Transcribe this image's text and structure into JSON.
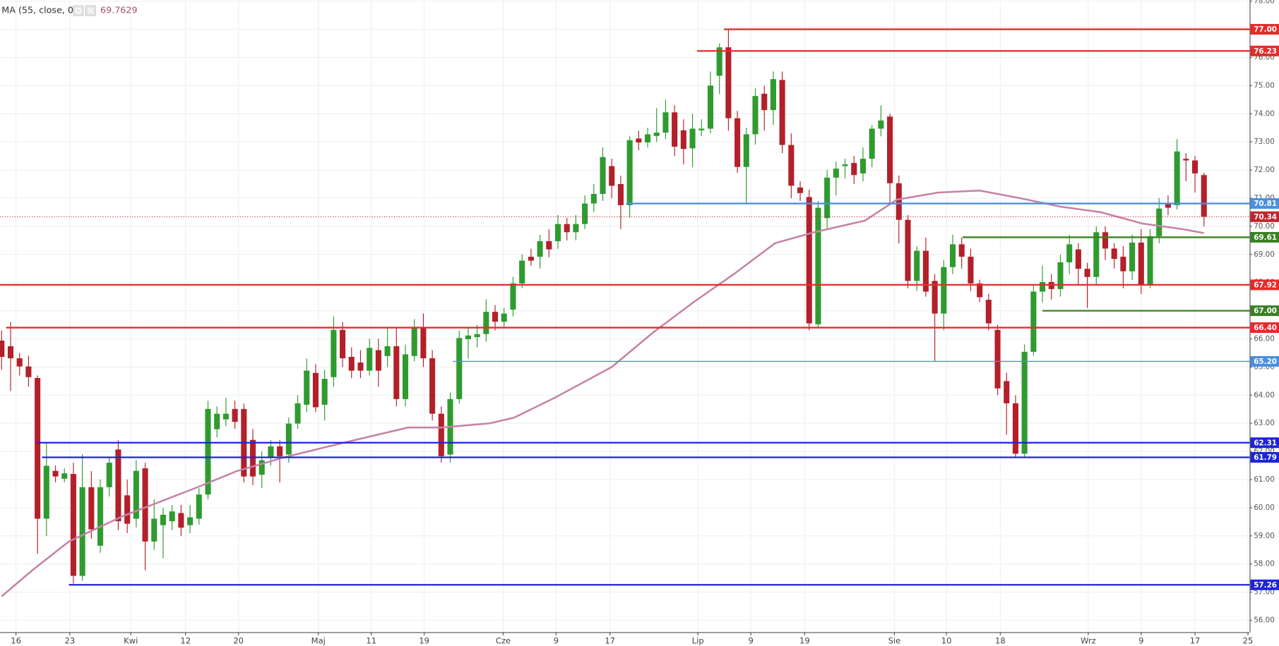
{
  "chart_data": {
    "type": "candlestick",
    "legend": {
      "name": "MA (55, close, 0)",
      "value": 69.7629
    },
    "up_color": "#2f9b2f",
    "down_color": "#b3202a",
    "xlim": [
      -0.18,
      139.09
    ],
    "xticks": [
      {
        "value": 1.6,
        "label": "16"
      },
      {
        "value": 7.6,
        "label": "23"
      },
      {
        "value": 14.4,
        "label": "Kwi"
      },
      {
        "value": 20.5,
        "label": "12"
      },
      {
        "value": 26.4,
        "label": "20"
      },
      {
        "value": 35.3,
        "label": "Maj"
      },
      {
        "value": 41.2,
        "label": "11"
      },
      {
        "value": 47.1,
        "label": "19"
      },
      {
        "value": 55.9,
        "label": "Cze"
      },
      {
        "value": 61.8,
        "label": "9"
      },
      {
        "value": 67.8,
        "label": "17"
      },
      {
        "value": 77.6,
        "label": "Lip"
      },
      {
        "value": 83.5,
        "label": "9"
      },
      {
        "value": 89.5,
        "label": "19"
      },
      {
        "value": 99.5,
        "label": "Sie"
      },
      {
        "value": 105.3,
        "label": "10"
      },
      {
        "value": 111.3,
        "label": "18"
      },
      {
        "value": 121.1,
        "label": "Wrz"
      },
      {
        "value": 127,
        "label": "9"
      },
      {
        "value": 133,
        "label": "17"
      },
      {
        "value": 138.9,
        "label": "25"
      }
    ],
    "ylim": [
      55.58,
      78.04
    ],
    "yticks": [
      {
        "value": 56,
        "label": "56.00"
      },
      {
        "value": 57,
        "label": "57.00"
      },
      {
        "value": 58,
        "label": "58.00"
      },
      {
        "value": 59,
        "label": "59.00"
      },
      {
        "value": 60,
        "label": "60.00"
      },
      {
        "value": 61,
        "label": "61.00"
      },
      {
        "value": 62,
        "label": "62.00"
      },
      {
        "value": 63,
        "label": "63.00"
      },
      {
        "value": 64,
        "label": "64.00"
      },
      {
        "value": 65,
        "label": "65.00"
      },
      {
        "value": 66,
        "label": "66.00"
      },
      {
        "value": 67,
        "label": "67.00"
      },
      {
        "value": 68,
        "label": "68.00"
      },
      {
        "value": 69,
        "label": "69.00"
      },
      {
        "value": 70,
        "label": "70.00"
      },
      {
        "value": 71,
        "label": "71.00"
      },
      {
        "value": 72,
        "label": "72.00"
      },
      {
        "value": 73,
        "label": "73.00"
      },
      {
        "value": 74,
        "label": "74.00"
      },
      {
        "value": 75,
        "label": "75.00"
      },
      {
        "value": 76,
        "label": "76.00"
      },
      {
        "value": 77,
        "label": "77.00"
      },
      {
        "value": 78,
        "label": "78.00"
      }
    ],
    "grid": true,
    "ohlc": [
      [
        65.94,
        66.3,
        64.9,
        65.36
      ],
      [
        65.74,
        66.6,
        64.15,
        65.31
      ],
      [
        65.31,
        65.5,
        64.7,
        65.02
      ],
      [
        65.02,
        65.4,
        64.3,
        64.64
      ],
      [
        64.61,
        64.7,
        58.36,
        59.61
      ],
      [
        59.61,
        62.3,
        59.0,
        61.49
      ],
      [
        61.31,
        61.5,
        60.9,
        61.11
      ],
      [
        61.03,
        61.4,
        60.9,
        61.22
      ],
      [
        61.2,
        61.6,
        57.3,
        57.58
      ],
      [
        57.58,
        61.9,
        57.4,
        60.73
      ],
      [
        60.73,
        61.3,
        58.9,
        59.23
      ],
      [
        58.65,
        61.0,
        58.4,
        60.73
      ],
      [
        60.73,
        61.8,
        60.4,
        61.6
      ],
      [
        62.07,
        62.4,
        59.2,
        59.52
      ],
      [
        60.44,
        61.0,
        59.1,
        59.43
      ],
      [
        59.61,
        61.7,
        59.3,
        61.31
      ],
      [
        61.4,
        61.6,
        57.78,
        58.8
      ],
      [
        58.8,
        60.3,
        58.5,
        59.61
      ],
      [
        59.38,
        60.0,
        58.2,
        59.75
      ],
      [
        59.52,
        60.1,
        59.2,
        59.87
      ],
      [
        59.81,
        60.1,
        59.0,
        59.29
      ],
      [
        59.38,
        60.1,
        59.1,
        59.66
      ],
      [
        59.61,
        60.7,
        59.4,
        60.47
      ],
      [
        60.47,
        63.8,
        60.3,
        63.51
      ],
      [
        62.79,
        63.6,
        62.5,
        63.34
      ],
      [
        63.14,
        63.9,
        62.9,
        63.34
      ],
      [
        63.51,
        63.8,
        62.8,
        63.05
      ],
      [
        63.51,
        63.7,
        60.9,
        61.11
      ],
      [
        62.41,
        62.8,
        60.8,
        61.11
      ],
      [
        61.17,
        62.0,
        60.7,
        61.69
      ],
      [
        61.78,
        62.4,
        61.5,
        62.18
      ],
      [
        62.18,
        62.4,
        60.9,
        61.83
      ],
      [
        61.89,
        63.2,
        61.6,
        62.99
      ],
      [
        62.99,
        64.0,
        62.8,
        63.71
      ],
      [
        63.66,
        65.3,
        63.4,
        64.87
      ],
      [
        64.79,
        65.1,
        63.4,
        63.57
      ],
      [
        63.66,
        64.9,
        63.1,
        64.58
      ],
      [
        64.64,
        66.8,
        64.3,
        66.32
      ],
      [
        66.32,
        66.6,
        65.0,
        65.31
      ],
      [
        65.36,
        65.7,
        64.6,
        64.87
      ],
      [
        65.16,
        65.6,
        64.6,
        64.87
      ],
      [
        64.87,
        66.0,
        64.7,
        65.68
      ],
      [
        65.6,
        66.0,
        64.3,
        64.87
      ],
      [
        65.39,
        66.4,
        65.0,
        65.74
      ],
      [
        65.74,
        66.4,
        63.6,
        63.86
      ],
      [
        63.86,
        65.8,
        63.6,
        65.45
      ],
      [
        65.39,
        66.7,
        65.2,
        66.38
      ],
      [
        66.38,
        66.9,
        65.0,
        65.31
      ],
      [
        65.31,
        65.6,
        63.1,
        63.34
      ],
      [
        63.34,
        63.6,
        61.6,
        61.83
      ],
      [
        61.89,
        64.1,
        61.6,
        63.86
      ],
      [
        63.86,
        66.3,
        63.7,
        66.03
      ],
      [
        65.99,
        66.4,
        65.3,
        66.12
      ],
      [
        66.06,
        66.5,
        65.7,
        66.17
      ],
      [
        66.17,
        67.4,
        65.9,
        66.96
      ],
      [
        66.96,
        67.2,
        66.3,
        66.61
      ],
      [
        66.61,
        67.1,
        66.4,
        66.9
      ],
      [
        67.04,
        68.2,
        66.8,
        67.97
      ],
      [
        67.97,
        69.0,
        67.8,
        68.78
      ],
      [
        68.92,
        69.2,
        68.6,
        68.78
      ],
      [
        68.92,
        69.7,
        68.5,
        69.47
      ],
      [
        69.47,
        69.9,
        68.9,
        69.18
      ],
      [
        69.47,
        70.4,
        69.2,
        70.08
      ],
      [
        70.08,
        70.3,
        69.5,
        69.79
      ],
      [
        69.79,
        70.4,
        69.5,
        70.08
      ],
      [
        70.08,
        71.1,
        69.9,
        70.81
      ],
      [
        70.81,
        71.5,
        70.5,
        71.15
      ],
      [
        71.15,
        72.8,
        70.9,
        72.46
      ],
      [
        72.14,
        72.4,
        71.0,
        71.44
      ],
      [
        71.5,
        71.8,
        69.9,
        70.75
      ],
      [
        70.75,
        73.2,
        70.3,
        73.06
      ],
      [
        73.12,
        73.4,
        72.7,
        72.98
      ],
      [
        72.98,
        73.5,
        72.8,
        73.27
      ],
      [
        73.21,
        74.2,
        73.0,
        73.33
      ],
      [
        73.33,
        74.5,
        73.1,
        74.05
      ],
      [
        74.05,
        74.3,
        72.5,
        72.83
      ],
      [
        73.41,
        73.8,
        72.2,
        72.75
      ],
      [
        72.77,
        74.0,
        72.1,
        73.47
      ],
      [
        73.41,
        73.8,
        73.2,
        73.47
      ],
      [
        73.47,
        75.5,
        73.3,
        75.0
      ],
      [
        75.35,
        76.5,
        74.7,
        76.36
      ],
      [
        76.36,
        77.0,
        73.4,
        73.84
      ],
      [
        73.84,
        74.1,
        71.9,
        72.11
      ],
      [
        72.11,
        73.5,
        70.8,
        73.27
      ],
      [
        73.27,
        74.9,
        72.9,
        74.63
      ],
      [
        74.71,
        75.0,
        73.4,
        74.13
      ],
      [
        74.13,
        75.5,
        73.6,
        75.23
      ],
      [
        75.2,
        75.5,
        72.6,
        72.89
      ],
      [
        72.89,
        73.3,
        71.0,
        71.44
      ],
      [
        71.38,
        71.6,
        70.9,
        71.18
      ],
      [
        71.04,
        71.3,
        66.3,
        66.55
      ],
      [
        66.52,
        70.9,
        66.4,
        70.66
      ],
      [
        70.29,
        72.0,
        69.9,
        71.73
      ],
      [
        71.73,
        72.3,
        71.1,
        72.05
      ],
      [
        72.14,
        72.4,
        71.7,
        72.2
      ],
      [
        72.25,
        72.5,
        71.5,
        71.82
      ],
      [
        71.88,
        72.8,
        71.6,
        72.4
      ],
      [
        72.4,
        73.6,
        72.1,
        73.47
      ],
      [
        73.47,
        74.3,
        73.2,
        73.76
      ],
      [
        73.9,
        74.0,
        70.8,
        71.53
      ],
      [
        71.53,
        71.8,
        69.4,
        70.23
      ],
      [
        70.23,
        70.4,
        67.8,
        68.06
      ],
      [
        68.06,
        69.3,
        67.7,
        69.13
      ],
      [
        69.13,
        69.6,
        67.5,
        67.68
      ],
      [
        68.06,
        68.3,
        65.2,
        66.9
      ],
      [
        66.9,
        68.8,
        66.3,
        68.55
      ],
      [
        68.55,
        69.7,
        68.3,
        69.36
      ],
      [
        69.36,
        69.6,
        68.5,
        68.92
      ],
      [
        68.92,
        69.2,
        67.7,
        67.97
      ],
      [
        67.97,
        68.1,
        67.3,
        67.48
      ],
      [
        67.39,
        67.6,
        66.3,
        66.55
      ],
      [
        66.32,
        66.5,
        64.0,
        64.24
      ],
      [
        64.5,
        64.8,
        62.6,
        63.71
      ],
      [
        63.71,
        64.0,
        61.8,
        61.92
      ],
      [
        61.92,
        65.8,
        61.8,
        65.54
      ],
      [
        65.54,
        67.9,
        65.4,
        67.68
      ],
      [
        67.68,
        68.6,
        67.3,
        68.02
      ],
      [
        68.02,
        68.3,
        67.4,
        67.77
      ],
      [
        67.77,
        69.0,
        67.5,
        68.72
      ],
      [
        68.72,
        69.7,
        68.3,
        69.36
      ],
      [
        69.18,
        69.4,
        67.9,
        68.49
      ],
      [
        68.49,
        68.7,
        67.1,
        68.2
      ],
      [
        68.2,
        70.0,
        67.9,
        69.79
      ],
      [
        69.79,
        70.0,
        68.8,
        69.21
      ],
      [
        69.21,
        69.4,
        68.5,
        68.84
      ],
      [
        68.92,
        69.3,
        67.8,
        68.4
      ],
      [
        68.4,
        69.7,
        68.1,
        69.42
      ],
      [
        69.42,
        69.9,
        67.6,
        67.91
      ],
      [
        67.91,
        69.9,
        67.8,
        69.65
      ],
      [
        69.65,
        71.0,
        69.4,
        70.63
      ],
      [
        70.81,
        71.1,
        70.4,
        70.66
      ],
      [
        70.75,
        73.1,
        70.6,
        72.66
      ],
      [
        72.4,
        72.6,
        71.6,
        72.34
      ],
      [
        72.34,
        72.5,
        71.2,
        71.88
      ],
      [
        71.82,
        71.9,
        70.0,
        70.34
      ]
    ],
    "ma": {
      "color": "#c583a6",
      "x": [
        0,
        3.5,
        7.5,
        13.5,
        21.6,
        26.2,
        31.6,
        38,
        45.3,
        49,
        54.4,
        57.1,
        61.6,
        68,
        72.5,
        77.1,
        81.6,
        86.2,
        90.7,
        96.2,
        99.8,
        104.4,
        109,
        113.5,
        118,
        122.5,
        127.1,
        131.6,
        134
      ],
      "values": [
        56.85,
        57.8,
        58.8,
        59.7,
        60.7,
        61.3,
        61.8,
        62.3,
        62.85,
        62.85,
        63.0,
        63.2,
        63.9,
        65.0,
        66.2,
        67.3,
        68.3,
        69.4,
        69.8,
        70.2,
        70.95,
        71.2,
        71.27,
        71.0,
        70.7,
        70.5,
        70.1,
        69.9,
        69.76
      ]
    },
    "levels": [
      {
        "value": 77,
        "label": "77.00",
        "color": "#e52b2b",
        "from": 80.5,
        "style": "solid"
      },
      {
        "value": 76.23,
        "label": "76.23",
        "color": "#e52b2b",
        "from": 77.5,
        "style": "solid"
      },
      {
        "value": 70.81,
        "label": "70.81",
        "color": "#4a8fe0",
        "from": 69.6,
        "style": "solid"
      },
      {
        "value": 70.34,
        "label": "70.34",
        "color": "#c0262c",
        "style": "dotted"
      },
      {
        "value": 69.61,
        "label": "69.61",
        "color": "#3b8024",
        "from": 107.1,
        "style": "solid"
      },
      {
        "value": 67.92,
        "label": "67.92",
        "color": "#e52b2b",
        "style": "solid"
      },
      {
        "value": 67,
        "label": "67.00",
        "color": "#3b8024",
        "from": 116,
        "style": "solid"
      },
      {
        "value": 66.4,
        "label": "66.40",
        "color": "#e52b2b",
        "from": 0.5,
        "style": "solid"
      },
      {
        "value": 65.2,
        "label": "65.20",
        "color": "#4a8fe0",
        "from": 50.3,
        "style": "thin"
      },
      {
        "value": 62.31,
        "label": "62.31",
        "color": "#1f24d6",
        "from": 4,
        "style": "solid"
      },
      {
        "value": 61.79,
        "label": "61.79",
        "color": "#1f24d6",
        "from": 4.5,
        "style": "solid"
      },
      {
        "value": 57.26,
        "label": "57.26",
        "color": "#1f24d6",
        "from": 7.5,
        "style": "solid"
      }
    ]
  }
}
